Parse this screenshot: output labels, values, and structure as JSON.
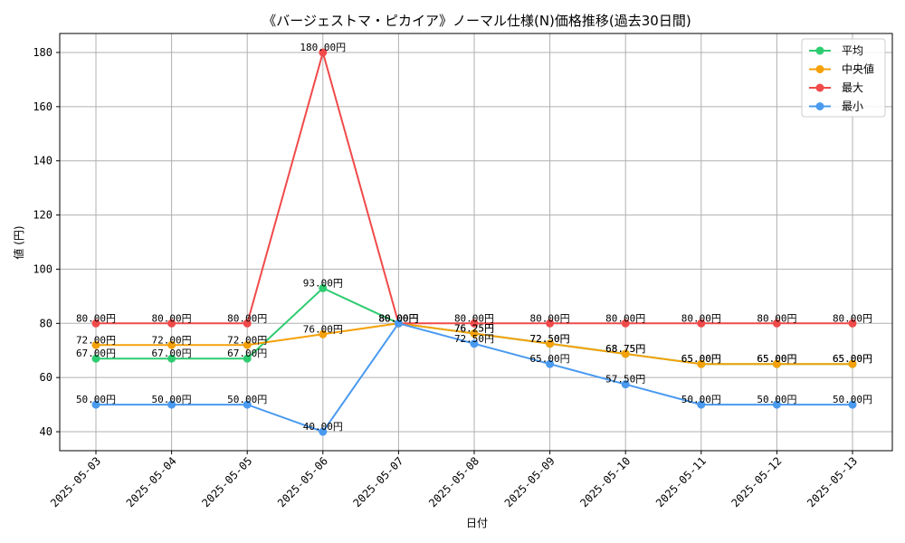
{
  "chart_data": {
    "type": "line",
    "title": "《バージェストマ・ピカイア》ノーマル仕様(N)価格推移(過去30日間)",
    "xlabel": "日付",
    "ylabel": "値 (円)",
    "ylim": [
      33,
      187
    ],
    "yticks": [
      40,
      60,
      80,
      100,
      120,
      140,
      160,
      180
    ],
    "grid": true,
    "legend_position": "top-right",
    "categories": [
      "2025-05-03",
      "2025-05-04",
      "2025-05-05",
      "2025-05-06",
      "2025-05-07",
      "2025-05-08",
      "2025-05-09",
      "2025-05-10",
      "2025-05-11",
      "2025-05-12",
      "2025-05-13"
    ],
    "value_suffix": "円",
    "series": [
      {
        "name": "平均",
        "color": "#2ecc71",
        "values": [
          67.0,
          67.0,
          67.0,
          93.0,
          80.0,
          76.25,
          72.5,
          68.75,
          65.0,
          65.0,
          65.0
        ]
      },
      {
        "name": "中央値",
        "color": "#f5a10a",
        "values": [
          72.0,
          72.0,
          72.0,
          76.0,
          80.0,
          76.25,
          72.5,
          68.75,
          65.0,
          65.0,
          65.0
        ]
      },
      {
        "name": "最大",
        "color": "#f04a4a",
        "values": [
          80.0,
          80.0,
          80.0,
          180.0,
          80.0,
          80.0,
          80.0,
          80.0,
          80.0,
          80.0,
          80.0
        ]
      },
      {
        "name": "最小",
        "color": "#4a9af0",
        "values": [
          50.0,
          50.0,
          50.0,
          40.0,
          80.0,
          72.5,
          65.0,
          57.5,
          50.0,
          50.0,
          50.0
        ]
      }
    ]
  }
}
